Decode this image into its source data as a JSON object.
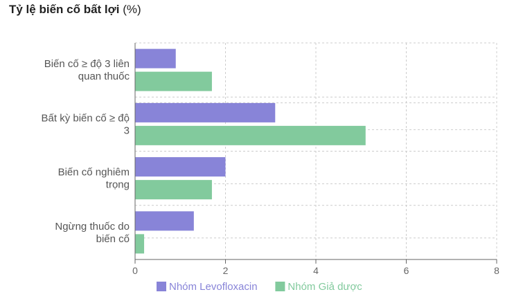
{
  "title": "Tỷ lệ biến cố bất lợi",
  "title_unit": "(%)",
  "chart_data": {
    "type": "bar",
    "orientation": "horizontal",
    "categories": [
      [
        "Biến cố ≥ độ 3 liên",
        "quan thuốc"
      ],
      [
        "Bất kỳ biến cố ≥ độ",
        "3"
      ],
      [
        "Biến cố nghiêm",
        "trọng"
      ],
      [
        "Ngừng thuốc do",
        "biến cố"
      ]
    ],
    "series": [
      {
        "name": "Nhóm Levofloxacin",
        "color": "#8884d8",
        "values": [
          0.9,
          3.1,
          2.0,
          1.3
        ]
      },
      {
        "name": "Nhóm Giả dược",
        "color": "#82ca9d",
        "values": [
          1.7,
          5.1,
          1.7,
          0.2
        ]
      }
    ],
    "xlim": [
      0,
      8
    ],
    "xticks": [
      0,
      2,
      4,
      6,
      8
    ],
    "grid": true,
    "legend": "bottom"
  }
}
